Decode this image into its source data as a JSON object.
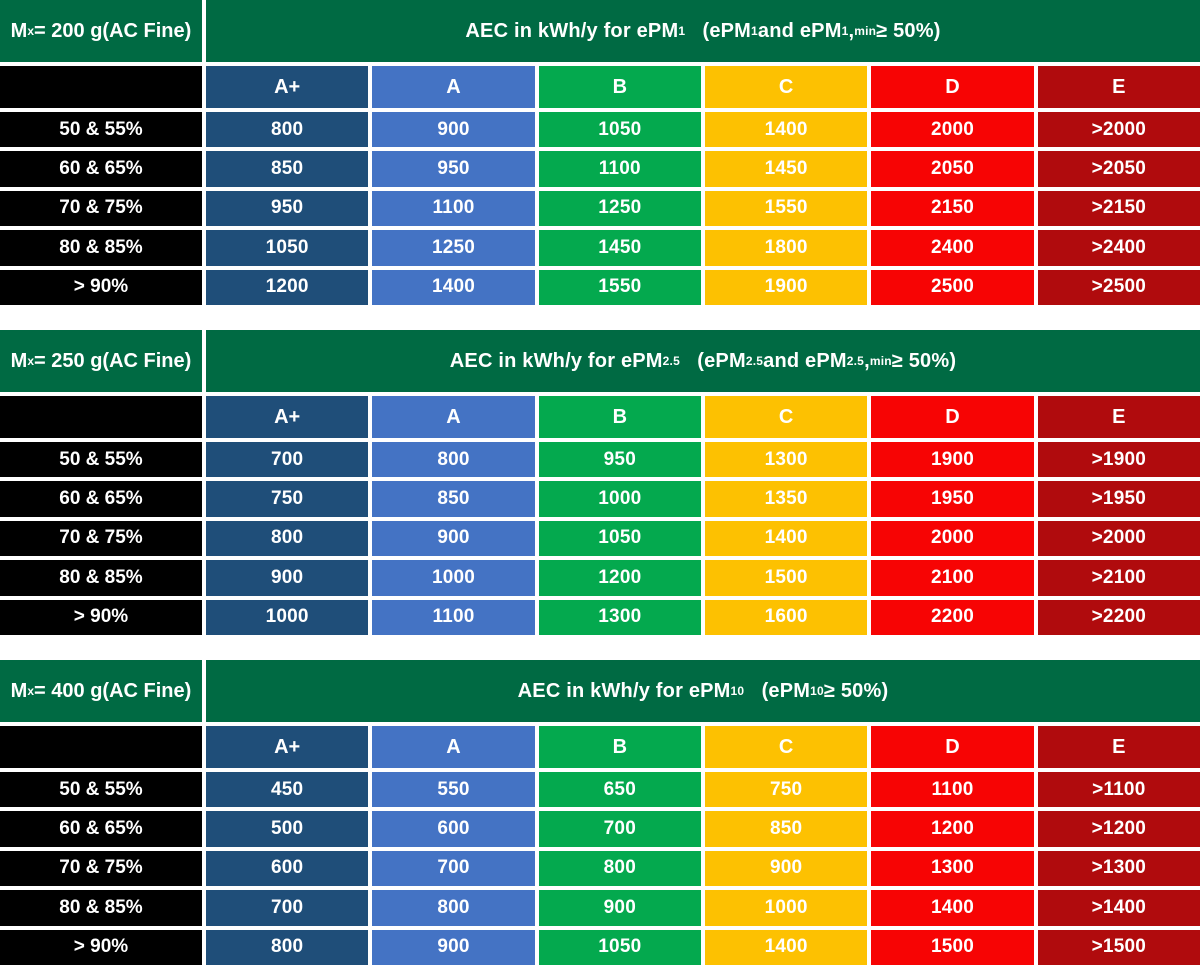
{
  "colors": {
    "header_green": "#006A43",
    "row_label_black": "#000000",
    "text_white": "#FFFFFF",
    "grid_white": "#FFFFFF",
    "class_colors": [
      "#1F4E79",
      "#4473C4",
      "#04A94E",
      "#FDC101",
      "#F70404",
      "#B00B0D"
    ]
  },
  "class_headers": [
    "A+",
    "A",
    "B",
    "C",
    "D",
    "E"
  ],
  "chart_data": [
    {
      "type": "table",
      "id": "epm1",
      "mass_label": "Mx = 200 g (AC Fine)",
      "mass_segments": [
        {
          "t": "M"
        },
        {
          "t": "x",
          "sub": true
        },
        {
          "t": " = 200 g"
        },
        {
          "br": true
        },
        {
          "t": "(AC Fine)"
        }
      ],
      "title_text": "AEC in kWh/y for ePM1 (ePM1 and ePM1,min ≥ 50%)",
      "title_segments": [
        {
          "t": "AEC in kWh/y for ePM"
        },
        {
          "t": "1",
          "sub": true
        },
        {
          "t": "   (ePM"
        },
        {
          "t": "1",
          "sub": true
        },
        {
          "t": " and ePM"
        },
        {
          "t": "1",
          "sub": true
        },
        {
          "t": ","
        },
        {
          "t": "min",
          "sub": true
        },
        {
          "t": " ≥ 50%)"
        }
      ],
      "columns": [
        "A+",
        "A",
        "B",
        "C",
        "D",
        "E"
      ],
      "rows": [
        {
          "label": "50 & 55%",
          "values": [
            "800",
            "900",
            "1050",
            "1400",
            "2000",
            ">2000"
          ]
        },
        {
          "label": "60 & 65%",
          "values": [
            "850",
            "950",
            "1100",
            "1450",
            "2050",
            ">2050"
          ]
        },
        {
          "label": "70 & 75%",
          "values": [
            "950",
            "1100",
            "1250",
            "1550",
            "2150",
            ">2150"
          ]
        },
        {
          "label": "80 & 85%",
          "values": [
            "1050",
            "1250",
            "1450",
            "1800",
            "2400",
            ">2400"
          ]
        },
        {
          "label": "> 90%",
          "values": [
            "1200",
            "1400",
            "1550",
            "1900",
            "2500",
            ">2500"
          ]
        }
      ]
    },
    {
      "type": "table",
      "id": "epm2-5",
      "mass_label": "Mx = 250 g (AC Fine)",
      "mass_segments": [
        {
          "t": "M"
        },
        {
          "t": "x",
          "sub": true
        },
        {
          "t": " = 250 g"
        },
        {
          "br": true
        },
        {
          "t": "(AC Fine)"
        }
      ],
      "title_text": "AEC in kWh/y for ePM2.5 (ePM2.5 and ePM2.5,min ≥ 50%)",
      "title_segments": [
        {
          "t": "AEC in kWh/y for ePM"
        },
        {
          "t": "2.5",
          "sub": true
        },
        {
          "t": "   (ePM"
        },
        {
          "t": "2.5",
          "sub": true
        },
        {
          "t": " and ePM"
        },
        {
          "t": "2.5",
          "sub": true
        },
        {
          "t": ","
        },
        {
          "t": "min",
          "sub": true
        },
        {
          "t": " ≥ 50%)"
        }
      ],
      "columns": [
        "A+",
        "A",
        "B",
        "C",
        "D",
        "E"
      ],
      "rows": [
        {
          "label": "50 & 55%",
          "values": [
            "700",
            "800",
            "950",
            "1300",
            "1900",
            ">1900"
          ]
        },
        {
          "label": "60 & 65%",
          "values": [
            "750",
            "850",
            "1000",
            "1350",
            "1950",
            ">1950"
          ]
        },
        {
          "label": "70 & 75%",
          "values": [
            "800",
            "900",
            "1050",
            "1400",
            "2000",
            ">2000"
          ]
        },
        {
          "label": "80 & 85%",
          "values": [
            "900",
            "1000",
            "1200",
            "1500",
            "2100",
            ">2100"
          ]
        },
        {
          "label": "> 90%",
          "values": [
            "1000",
            "1100",
            "1300",
            "1600",
            "2200",
            ">2200"
          ]
        }
      ]
    },
    {
      "type": "table",
      "id": "epm10",
      "mass_label": "Mx = 400 g (AC Fine)",
      "mass_segments": [
        {
          "t": "M"
        },
        {
          "t": "x",
          "sub": true
        },
        {
          "t": " = 400 g"
        },
        {
          "br": true
        },
        {
          "t": "(AC Fine)"
        }
      ],
      "title_text": "AEC in kWh/y for ePM10 (ePM10 ≥ 50%)",
      "title_segments": [
        {
          "t": "AEC in kWh/y for ePM"
        },
        {
          "t": "10",
          "sub": true
        },
        {
          "t": "   (ePM"
        },
        {
          "t": "10",
          "sub": true
        },
        {
          "t": " ≥ 50%)"
        }
      ],
      "columns": [
        "A+",
        "A",
        "B",
        "C",
        "D",
        "E"
      ],
      "rows": [
        {
          "label": "50 & 55%",
          "values": [
            "450",
            "550",
            "650",
            "750",
            "1100",
            ">1100"
          ]
        },
        {
          "label": "60 & 65%",
          "values": [
            "500",
            "600",
            "700",
            "850",
            "1200",
            ">1200"
          ]
        },
        {
          "label": "70 & 75%",
          "values": [
            "600",
            "700",
            "800",
            "900",
            "1300",
            ">1300"
          ]
        },
        {
          "label": "80 & 85%",
          "values": [
            "700",
            "800",
            "900",
            "1000",
            "1400",
            ">1400"
          ]
        },
        {
          "label": "> 90%",
          "values": [
            "800",
            "900",
            "1050",
            "1400",
            "1500",
            ">1500"
          ]
        }
      ]
    }
  ]
}
